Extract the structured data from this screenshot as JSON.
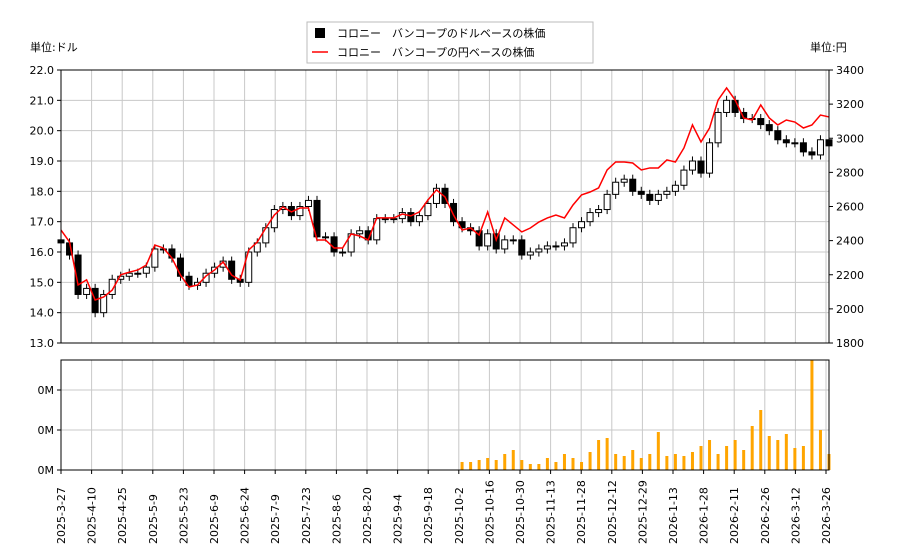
{
  "chart_data": [
    {
      "type": "candlestick+line",
      "legend": [
        "コロニー　バンコープのドルベースの株価",
        "コロニー　バンコープの円ベースの株価"
      ],
      "legend_position": "top-center",
      "left_unit": "単位:ドル",
      "right_unit": "単位:円",
      "ylim": [
        13,
        22
      ],
      "y2lim": [
        1800,
        3400
      ],
      "yticks": [
        "13.0",
        "14.0",
        "15.0",
        "16.0",
        "17.0",
        "18.0",
        "19.0",
        "20.0",
        "21.0",
        "22.0"
      ],
      "y2ticks": [
        "1800",
        "2000",
        "2200",
        "2400",
        "2600",
        "2800",
        "3000",
        "3200",
        "3400"
      ],
      "grid": true,
      "colors": {
        "usd": "#000000",
        "jpy": "#ff0000",
        "up_fill": "#ffffff"
      },
      "xticks": [
        "2025-3-27",
        "2025-4-10",
        "2025-4-25",
        "2025-5-9",
        "2025-5-23",
        "2025-6-9",
        "2025-6-24",
        "2025-7-9",
        "2025-7-23",
        "2025-8-6",
        "2025-8-20",
        "2025-9-4",
        "2025-9-18",
        "2025-10-2",
        "2025-10-16",
        "2025-10-30",
        "2025-11-13",
        "2025-11-28",
        "2025-12-12",
        "2025-12-29",
        "2026-1-13",
        "2026-1-28",
        "2026-2-11",
        "2026-2-26",
        "2026-3-12",
        "2026-3-26"
      ],
      "usd_close": [
        16.3,
        15.9,
        14.6,
        14.8,
        14.0,
        14.6,
        15.1,
        15.2,
        15.3,
        15.3,
        15.5,
        16.1,
        16.1,
        15.8,
        15.2,
        14.9,
        15.0,
        15.3,
        15.5,
        15.7,
        15.1,
        15.0,
        16.0,
        16.3,
        16.8,
        17.4,
        17.5,
        17.2,
        17.5,
        17.7,
        16.5,
        16.5,
        16.0,
        16.0,
        16.6,
        16.7,
        16.4,
        17.1,
        17.1,
        17.1,
        17.3,
        17.0,
        17.2,
        17.6,
        18.1,
        17.6,
        17.0,
        16.8,
        16.7,
        16.2,
        16.6,
        16.1,
        16.4,
        16.4,
        15.9,
        16.0,
        16.1,
        16.2,
        16.2,
        16.3,
        16.8,
        17.0,
        17.3,
        17.4,
        17.9,
        18.3,
        18.4,
        18.0,
        17.9,
        17.7,
        17.9,
        18.0,
        18.2,
        18.7,
        19.0,
        18.6,
        19.6,
        20.6,
        21.0,
        20.6,
        20.4,
        20.4,
        20.2,
        20.0,
        19.7,
        19.6,
        19.6,
        19.3,
        19.2,
        19.7,
        19.5
      ],
      "jpy_close": [
        2462,
        2392,
        2140,
        2170,
        2052,
        2070,
        2110,
        2200,
        2215,
        2228,
        2257,
        2374,
        2357,
        2298,
        2198,
        2128,
        2140,
        2193,
        2228,
        2275,
        2198,
        2169,
        2345,
        2392,
        2474,
        2550,
        2597,
        2568,
        2591,
        2591,
        2404,
        2404,
        2357,
        2357,
        2439,
        2427,
        2404,
        2533,
        2533,
        2533,
        2556,
        2545,
        2568,
        2638,
        2697,
        2656,
        2550,
        2462,
        2474,
        2433,
        2568,
        2404,
        2533,
        2492,
        2451,
        2474,
        2509,
        2533,
        2550,
        2533,
        2609,
        2668,
        2685,
        2709,
        2814,
        2861,
        2861,
        2855,
        2814,
        2826,
        2826,
        2873,
        2861,
        2943,
        3078,
        2978,
        3060,
        3224,
        3295,
        3224,
        3119,
        3107,
        3195,
        3119,
        3078,
        3107,
        3095,
        3060,
        3078,
        3136,
        3125
      ]
    },
    {
      "type": "bar",
      "yticks": [
        "0M",
        "0M",
        "0M"
      ],
      "ylim": [
        0,
        0.55
      ],
      "color": "#ffa500",
      "volume": [
        0,
        0,
        0,
        0,
        0,
        0,
        0,
        0,
        0,
        0,
        0,
        0,
        0,
        0,
        0,
        0,
        0,
        0,
        0,
        0,
        0,
        0,
        0,
        0,
        0,
        0,
        0,
        0,
        0,
        0,
        0,
        0,
        0,
        0,
        0,
        0,
        0,
        0,
        0,
        0,
        0,
        0,
        0,
        0,
        0,
        0,
        0,
        0.04,
        0.04,
        0.05,
        0.06,
        0.05,
        0.08,
        0.1,
        0.05,
        0.03,
        0.03,
        0.06,
        0.04,
        0.08,
        0.06,
        0.04,
        0.09,
        0.15,
        0.16,
        0.08,
        0.07,
        0.1,
        0.06,
        0.08,
        0.19,
        0.07,
        0.08,
        0.07,
        0.09,
        0.12,
        0.15,
        0.08,
        0.12,
        0.15,
        0.1,
        0.22,
        0.3,
        0.17,
        0.15,
        0.18,
        0.11,
        0.12,
        0.55,
        0.2,
        0.08
      ]
    }
  ]
}
